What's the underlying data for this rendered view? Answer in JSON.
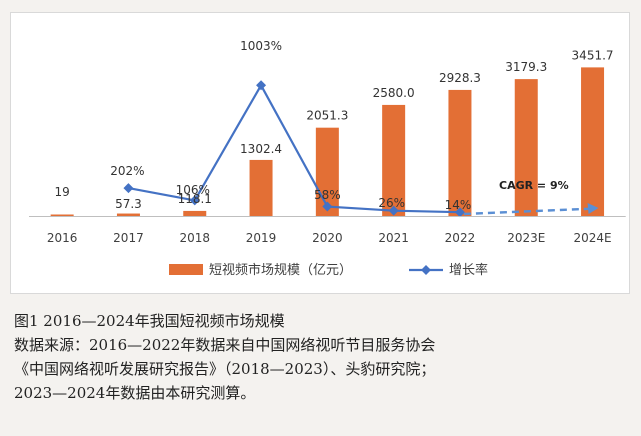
{
  "chart_data": {
    "type": "bar",
    "categories": [
      "2016",
      "2017",
      "2018",
      "2019",
      "2020",
      "2021",
      "2022",
      "2023E",
      "2024E"
    ],
    "series": [
      {
        "name": "短视频市场规模（亿元）",
        "type": "bar",
        "values": [
          19,
          57.3,
          118.1,
          1302.4,
          2051.3,
          2580.0,
          2928.3,
          3179.3,
          3451.7
        ],
        "labels": [
          "19",
          "57.3",
          "118.1",
          "1302.4",
          "2051.3",
          "2580.0",
          "2928.3",
          "3179.3",
          "3451.7"
        ],
        "color": "#e36f35"
      },
      {
        "name": "增长率",
        "type": "line",
        "x": [
          "2017",
          "2018",
          "2019",
          "2020",
          "2021",
          "2022"
        ],
        "values": [
          202,
          106,
          1003,
          58,
          26,
          14
        ],
        "labels": [
          "202%",
          "106%",
          "1003%",
          "58%",
          "26%",
          "14%"
        ],
        "color": "#4472c4"
      },
      {
        "name": "CAGR",
        "type": "dashed-arrow",
        "x": [
          "2022",
          "2024E"
        ],
        "color": "#5b8fd4"
      }
    ],
    "annotation": "CAGR = 9%",
    "legend_position": "bottom",
    "grid": false,
    "bar_ylim": [
      0,
      3600
    ],
    "line_ylim": [
      0,
      1130
    ]
  },
  "caption": {
    "title": "图1  2016—2024年我国短视频市场规模",
    "source_line1": "数据来源：2016—2022年数据来自中国网络视听节目服务协会",
    "source_line2": "《中国网络视听发展研究报告》（2018—2023）、头豹研究院；",
    "source_line3": "2023—2024年数据由本研究测算。"
  }
}
